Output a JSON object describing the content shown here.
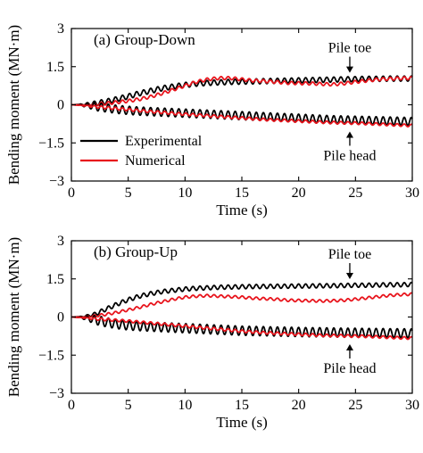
{
  "chart_data": [
    {
      "type": "line",
      "panel_label": "(a) Group-Down",
      "xlabel": "Time (s)",
      "ylabel": "Bending moment (MN·m)",
      "xlim": [
        0,
        30
      ],
      "ylim": [
        -3,
        3
      ],
      "xticks": [
        0,
        5,
        10,
        15,
        20,
        25,
        30
      ],
      "xtick_labels": [
        "0",
        "5",
        "10",
        "15",
        "20",
        "25",
        "30"
      ],
      "yticks": [
        3,
        1.5,
        0,
        -1.5,
        -3
      ],
      "ytick_labels": [
        "3",
        "1.5",
        "0",
        "−1.5",
        "−3"
      ],
      "legend": {
        "placement": "lower-left",
        "entries": [
          {
            "label": "Experimental",
            "color": "#000000"
          },
          {
            "label": "Numerical",
            "color": "#e8141c"
          }
        ]
      },
      "annotations": [
        {
          "text": "Pile toe",
          "arrow_x": 24.5,
          "arrow_y": 1.05,
          "direction": "down"
        },
        {
          "text": "Pile head",
          "arrow_x": 24.5,
          "arrow_y": -0.7,
          "direction": "up"
        }
      ],
      "series": [
        {
          "curve": "pile-toe",
          "source": "experimental",
          "color": "#000000",
          "osc_amp": 0.1,
          "osc_period": 0.62,
          "x": [
            0,
            1,
            2,
            3,
            4,
            5,
            6,
            7,
            8,
            9,
            10,
            11,
            12,
            13,
            14,
            15,
            16,
            17,
            18,
            19,
            20,
            21,
            22,
            23,
            24,
            25,
            26,
            27,
            28,
            29,
            30
          ],
          "y": [
            0,
            0.02,
            0.05,
            0.12,
            0.22,
            0.33,
            0.45,
            0.55,
            0.65,
            0.72,
            0.78,
            0.83,
            0.86,
            0.88,
            0.9,
            0.91,
            0.92,
            0.93,
            0.94,
            0.95,
            0.96,
            0.97,
            0.98,
            0.99,
            1.0,
            1.01,
            1.02,
            1.02,
            1.03,
            1.03,
            1.03
          ]
        },
        {
          "curve": "pile-toe",
          "source": "numerical",
          "color": "#e8141c",
          "osc_amp": 0.06,
          "osc_period": 0.62,
          "x": [
            0,
            1,
            2,
            3,
            4,
            5,
            6,
            7,
            8,
            9,
            10,
            11,
            12,
            13,
            14,
            15,
            16,
            17,
            18,
            19,
            20,
            21,
            22,
            23,
            24,
            25,
            26,
            27,
            28,
            29,
            30
          ],
          "y": [
            0,
            0.0,
            0.02,
            0.05,
            0.1,
            0.15,
            0.22,
            0.32,
            0.45,
            0.6,
            0.75,
            0.9,
            1.0,
            1.05,
            1.05,
            1.0,
            0.95,
            0.93,
            0.9,
            0.86,
            0.85,
            0.84,
            0.82,
            0.8,
            0.84,
            0.9,
            0.95,
            1.0,
            1.02,
            1.04,
            1.05
          ]
        },
        {
          "curve": "pile-head",
          "source": "experimental",
          "color": "#000000",
          "osc_amp": 0.16,
          "osc_period": 0.62,
          "x": [
            0,
            1,
            2,
            3,
            4,
            5,
            6,
            7,
            8,
            9,
            10,
            11,
            12,
            13,
            14,
            15,
            16,
            17,
            18,
            19,
            20,
            21,
            22,
            23,
            24,
            25,
            26,
            27,
            28,
            29,
            30
          ],
          "y": [
            0,
            -0.02,
            -0.06,
            -0.12,
            -0.18,
            -0.22,
            -0.25,
            -0.27,
            -0.29,
            -0.31,
            -0.33,
            -0.35,
            -0.37,
            -0.39,
            -0.41,
            -0.43,
            -0.45,
            -0.47,
            -0.49,
            -0.51,
            -0.53,
            -0.55,
            -0.57,
            -0.59,
            -0.6,
            -0.61,
            -0.62,
            -0.63,
            -0.64,
            -0.65,
            -0.66
          ]
        },
        {
          "curve": "pile-head",
          "source": "numerical",
          "color": "#e8141c",
          "osc_amp": 0.05,
          "osc_period": 0.62,
          "x": [
            0,
            1,
            2,
            3,
            4,
            5,
            6,
            7,
            8,
            9,
            10,
            11,
            12,
            13,
            14,
            15,
            16,
            17,
            18,
            19,
            20,
            21,
            22,
            23,
            24,
            25,
            26,
            27,
            28,
            29,
            30
          ],
          "y": [
            0,
            -0.03,
            -0.07,
            -0.11,
            -0.15,
            -0.19,
            -0.23,
            -0.27,
            -0.3,
            -0.34,
            -0.37,
            -0.4,
            -0.43,
            -0.46,
            -0.49,
            -0.52,
            -0.55,
            -0.58,
            -0.6,
            -0.62,
            -0.64,
            -0.66,
            -0.68,
            -0.7,
            -0.71,
            -0.72,
            -0.74,
            -0.76,
            -0.78,
            -0.8,
            -0.82
          ]
        }
      ]
    },
    {
      "type": "line",
      "panel_label": "(b) Group-Up",
      "xlabel": "Time (s)",
      "ylabel": "Bending moment (MN·m)",
      "xlim": [
        0,
        30
      ],
      "ylim": [
        -3,
        3
      ],
      "xticks": [
        0,
        5,
        10,
        15,
        20,
        25,
        30
      ],
      "xtick_labels": [
        "0",
        "5",
        "10",
        "15",
        "20",
        "25",
        "30"
      ],
      "yticks": [
        3,
        1.5,
        0,
        -1.5,
        -3
      ],
      "ytick_labels": [
        "3",
        "1.5",
        "0",
        "−1.5",
        "−3"
      ],
      "annotations": [
        {
          "text": "Pile toe",
          "arrow_x": 24.5,
          "arrow_y": 1.28,
          "direction": "down"
        },
        {
          "text": "Pile head",
          "arrow_x": 24.5,
          "arrow_y": -0.72,
          "direction": "up"
        }
      ],
      "series": [
        {
          "curve": "pile-toe",
          "source": "experimental",
          "color": "#000000",
          "osc_amp": 0.08,
          "osc_period": 0.62,
          "x": [
            0,
            1,
            2,
            3,
            4,
            5,
            6,
            7,
            8,
            9,
            10,
            11,
            12,
            13,
            14,
            15,
            16,
            17,
            18,
            19,
            20,
            21,
            22,
            23,
            24,
            25,
            26,
            27,
            28,
            29,
            30
          ],
          "y": [
            0,
            0.02,
            0.1,
            0.3,
            0.5,
            0.68,
            0.82,
            0.92,
            1.0,
            1.05,
            1.1,
            1.13,
            1.15,
            1.17,
            1.18,
            1.19,
            1.2,
            1.2,
            1.21,
            1.21,
            1.22,
            1.22,
            1.23,
            1.23,
            1.24,
            1.25,
            1.25,
            1.26,
            1.27,
            1.27,
            1.28
          ]
        },
        {
          "curve": "pile-toe",
          "source": "numerical",
          "color": "#e8141c",
          "osc_amp": 0.05,
          "osc_period": 0.62,
          "x": [
            0,
            1,
            2,
            3,
            4,
            5,
            6,
            7,
            8,
            9,
            10,
            11,
            12,
            13,
            14,
            15,
            16,
            17,
            18,
            19,
            20,
            21,
            22,
            23,
            24,
            25,
            26,
            27,
            28,
            29,
            30
          ],
          "y": [
            0,
            0.0,
            0.04,
            0.1,
            0.18,
            0.28,
            0.38,
            0.5,
            0.6,
            0.7,
            0.78,
            0.82,
            0.84,
            0.82,
            0.8,
            0.78,
            0.74,
            0.72,
            0.7,
            0.66,
            0.65,
            0.64,
            0.63,
            0.64,
            0.66,
            0.7,
            0.75,
            0.8,
            0.85,
            0.88,
            0.9
          ]
        },
        {
          "curve": "pile-head",
          "source": "experimental",
          "color": "#000000",
          "osc_amp": 0.18,
          "osc_period": 0.62,
          "x": [
            0,
            1,
            2,
            3,
            4,
            5,
            6,
            7,
            8,
            9,
            10,
            11,
            12,
            13,
            14,
            15,
            16,
            17,
            18,
            19,
            20,
            21,
            22,
            23,
            24,
            25,
            26,
            27,
            28,
            29,
            30
          ],
          "y": [
            0,
            -0.03,
            -0.1,
            -0.2,
            -0.28,
            -0.33,
            -0.36,
            -0.38,
            -0.4,
            -0.42,
            -0.44,
            -0.46,
            -0.48,
            -0.5,
            -0.52,
            -0.54,
            -0.55,
            -0.56,
            -0.57,
            -0.58,
            -0.59,
            -0.6,
            -0.6,
            -0.61,
            -0.62,
            -0.62,
            -0.63,
            -0.63,
            -0.64,
            -0.64,
            -0.65
          ]
        },
        {
          "curve": "pile-head",
          "source": "numerical",
          "color": "#e8141c",
          "osc_amp": 0.05,
          "osc_period": 0.62,
          "x": [
            0,
            1,
            2,
            3,
            4,
            5,
            6,
            7,
            8,
            9,
            10,
            11,
            12,
            13,
            14,
            15,
            16,
            17,
            18,
            19,
            20,
            21,
            22,
            23,
            24,
            25,
            26,
            27,
            28,
            29,
            30
          ],
          "y": [
            0,
            -0.03,
            -0.07,
            -0.1,
            -0.13,
            -0.16,
            -0.2,
            -0.24,
            -0.28,
            -0.32,
            -0.36,
            -0.4,
            -0.44,
            -0.48,
            -0.52,
            -0.56,
            -0.59,
            -0.62,
            -0.64,
            -0.66,
            -0.68,
            -0.7,
            -0.72,
            -0.73,
            -0.74,
            -0.75,
            -0.76,
            -0.78,
            -0.8,
            -0.82,
            -0.83
          ]
        }
      ]
    }
  ]
}
